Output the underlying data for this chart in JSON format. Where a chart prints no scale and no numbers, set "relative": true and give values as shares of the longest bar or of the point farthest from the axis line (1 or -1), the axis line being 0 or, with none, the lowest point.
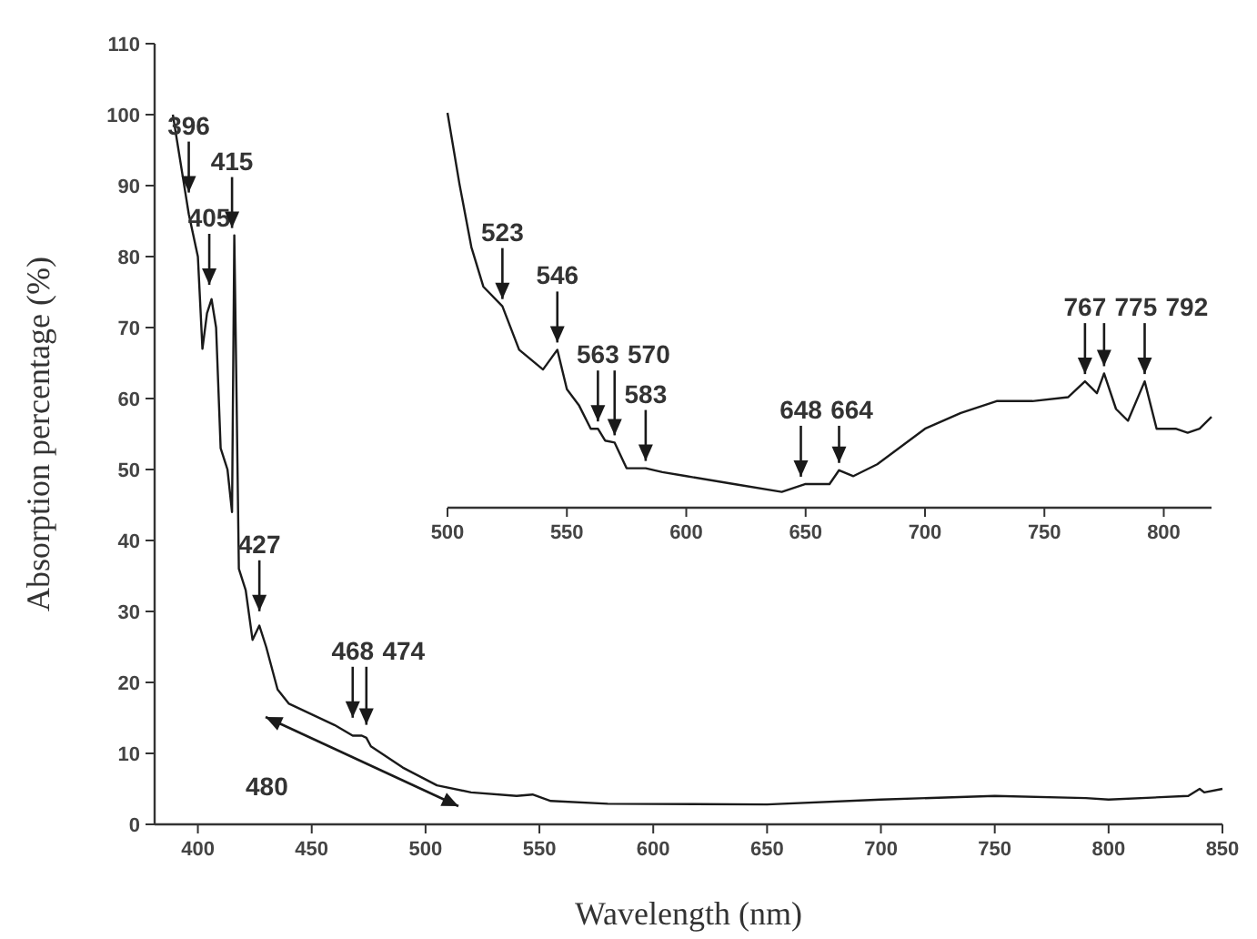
{
  "chart_data": [
    {
      "type": "line",
      "xlabel": "Wavelength (nm)",
      "ylabel": "Absorption percentage (%)",
      "xlim": [
        381,
        850
      ],
      "ylim": [
        0,
        110
      ],
      "xticks": [
        400,
        450,
        500,
        550,
        600,
        650,
        700,
        750,
        800,
        850
      ],
      "yticks": [
        0,
        10,
        20,
        30,
        40,
        50,
        60,
        70,
        80,
        90,
        100,
        110
      ],
      "grid": false,
      "series": [
        {
          "color": "#1a1a1a",
          "x": [
            389,
            393,
            396,
            400,
            402,
            404,
            406,
            408,
            410,
            413,
            415,
            416,
            417,
            418,
            421,
            424,
            427,
            430,
            435,
            440,
            450,
            460,
            468,
            472,
            474,
            476,
            490,
            505,
            520,
            540,
            547,
            555,
            580,
            650,
            700,
            750,
            790,
            800,
            835,
            840,
            842,
            850
          ],
          "values": [
            100,
            92,
            86,
            80,
            67,
            72,
            74,
            70,
            53,
            50,
            44,
            83,
            60,
            36,
            33,
            26,
            28,
            25,
            19,
            17,
            15.5,
            14,
            12.5,
            12.5,
            12.2,
            11,
            8,
            5.5,
            4.5,
            4,
            4.2,
            3.3,
            2.9,
            2.8,
            3.5,
            4,
            3.7,
            3.5,
            4,
            5,
            4.5,
            5
          ]
        }
      ],
      "annotations": [
        {
          "text": "396",
          "x": 396,
          "y": 88
        },
        {
          "text": "405",
          "x": 405,
          "y": 75
        },
        {
          "text": "415",
          "x": 415,
          "y": 83
        },
        {
          "text": "427",
          "x": 427,
          "y": 29
        },
        {
          "text": "468",
          "x": 468,
          "y": 14
        },
        {
          "text": "474",
          "x": 474,
          "y": 13
        },
        "480"
      ]
    },
    {
      "type": "line",
      "relative": true,
      "tick_labels": "x",
      "xlim": [
        500,
        820
      ],
      "xticks": [
        500,
        550,
        600,
        650,
        700,
        750,
        800
      ],
      "grid": false,
      "series": [
        {
          "color": "#1a1a1a",
          "x": [
            500,
            505,
            510,
            515,
            523,
            530,
            540,
            546,
            550,
            555,
            560,
            563,
            566,
            570,
            575,
            583,
            590,
            600,
            620,
            640,
            650,
            660,
            664,
            670,
            680,
            700,
            715,
            730,
            745,
            760,
            767,
            772,
            775,
            780,
            785,
            792,
            797,
            805,
            810,
            815,
            820
          ],
          "values": [
            1,
            0.82,
            0.66,
            0.56,
            0.51,
            0.4,
            0.35,
            0.4,
            0.3,
            0.26,
            0.2,
            0.2,
            0.17,
            0.165,
            0.1,
            0.1,
            0.09,
            0.08,
            0.06,
            0.04,
            0.06,
            0.06,
            0.095,
            0.08,
            0.11,
            0.2,
            0.24,
            0.27,
            0.27,
            0.28,
            0.32,
            0.29,
            0.34,
            0.25,
            0.22,
            0.32,
            0.2,
            0.2,
            0.19,
            0.2,
            0.23
          ]
        }
      ],
      "annotations": [
        {
          "text": "523",
          "x": 523,
          "y": 0.51
        },
        {
          "text": "546",
          "x": 546,
          "y": 0.4
        },
        {
          "text": "563",
          "x": 563,
          "y": 0.2
        },
        {
          "text": "570",
          "x": 570,
          "y": 0.165
        },
        {
          "text": "583",
          "x": 583,
          "y": 0.1
        },
        {
          "text": "648",
          "x": 648,
          "y": 0.06
        },
        {
          "text": "664",
          "x": 664,
          "y": 0.095
        },
        {
          "text": "767",
          "x": 767,
          "y": 0.32
        },
        {
          "text": "775",
          "x": 775,
          "y": 0.34
        },
        {
          "text": "792",
          "x": 792,
          "y": 0.32
        }
      ]
    }
  ]
}
